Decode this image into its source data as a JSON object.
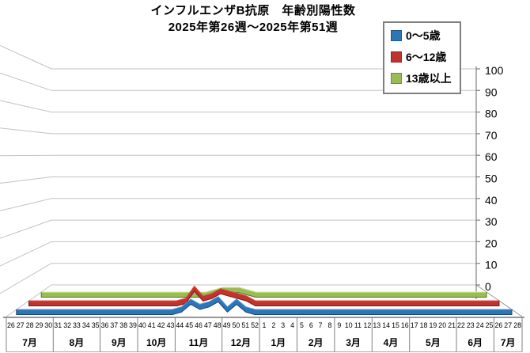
{
  "title": {
    "line1": "インフルエンザB抗原　年齢別陽性数",
    "line2": "2025年第26週～2025年第51週"
  },
  "legend": {
    "items": [
      {
        "label": "0～5歳",
        "color": "#2E75B6"
      },
      {
        "label": "6～12歳",
        "color": "#BE352F"
      },
      {
        "label": "13歳以上",
        "color": "#9BBB59"
      }
    ]
  },
  "chart_data": {
    "type": "line",
    "style": "3d-ribbon",
    "title": "インフルエンザB抗原　年齢別陽性数",
    "subtitle": "2025年第26週～2025年第51週",
    "ylabel": "",
    "ylim": [
      0,
      100
    ],
    "yticks": [
      0,
      10,
      20,
      30,
      40,
      50,
      60,
      70,
      80,
      90,
      100
    ],
    "grid": true,
    "legend_position": "top-right",
    "x": [
      "26",
      "27",
      "28",
      "29",
      "30",
      "31",
      "32",
      "33",
      "34",
      "35",
      "36",
      "37",
      "38",
      "39",
      "40",
      "41",
      "42",
      "43",
      "44",
      "45",
      "46",
      "47",
      "48",
      "49",
      "50",
      "51",
      "52",
      "1",
      "2",
      "3",
      "4",
      "5",
      "6",
      "7",
      "8",
      "9",
      "10",
      "11",
      "12",
      "13",
      "14",
      "15",
      "16",
      "17",
      "18",
      "19",
      "20",
      "21",
      "22",
      "23",
      "24",
      "25",
      "26",
      "27",
      "28"
    ],
    "month_groups": [
      {
        "label": "7月",
        "weeks": 5
      },
      {
        "label": "8月",
        "weeks": 5
      },
      {
        "label": "9月",
        "weeks": 4
      },
      {
        "label": "10月",
        "weeks": 4
      },
      {
        "label": "11月",
        "weeks": 5
      },
      {
        "label": "12月",
        "weeks": 4
      },
      {
        "label": "1月",
        "weeks": 4
      },
      {
        "label": "2月",
        "weeks": 4
      },
      {
        "label": "3月",
        "weeks": 4
      },
      {
        "label": "4月",
        "weeks": 4
      },
      {
        "label": "5月",
        "weeks": 5
      },
      {
        "label": "6月",
        "weeks": 4
      },
      {
        "label": "7月",
        "weeks": 3
      }
    ],
    "series": [
      {
        "name": "0～5歳",
        "color": "#2E75B6",
        "depth": "front",
        "values": [
          0,
          0,
          0,
          0,
          0,
          0,
          0,
          0,
          0,
          0,
          0,
          0,
          0,
          0,
          0,
          0,
          0,
          0,
          1,
          4,
          2,
          3,
          5,
          1,
          4,
          1,
          0,
          0,
          0,
          0,
          0,
          0,
          0,
          0,
          0,
          0,
          0,
          0,
          0,
          0,
          0,
          0,
          0,
          0,
          0,
          0,
          0,
          0,
          0,
          0,
          0,
          0,
          0,
          0,
          0
        ]
      },
      {
        "name": "6～12歳",
        "color": "#BE352F",
        "depth": "middle",
        "values": [
          0,
          0,
          0,
          0,
          0,
          0,
          0,
          0,
          0,
          0,
          0,
          0,
          0,
          0,
          0,
          0,
          0,
          0,
          1,
          6,
          2,
          3,
          5,
          4,
          3,
          2,
          0,
          0,
          0,
          0,
          0,
          0,
          0,
          0,
          0,
          0,
          0,
          0,
          0,
          0,
          0,
          0,
          0,
          0,
          0,
          0,
          0,
          0,
          0,
          0,
          0,
          0,
          0,
          0,
          0
        ]
      },
      {
        "name": "13歳以上",
        "color": "#9BBB59",
        "depth": "back",
        "values": [
          0,
          0,
          0,
          0,
          0,
          0,
          0,
          0,
          0,
          0,
          0,
          0,
          0,
          0,
          0,
          0,
          0,
          0,
          0,
          0,
          0,
          1,
          2,
          2,
          2,
          1,
          0,
          0,
          0,
          0,
          0,
          0,
          0,
          0,
          0,
          0,
          0,
          0,
          0,
          0,
          0,
          0,
          0,
          0,
          0,
          0,
          0,
          0,
          0,
          0,
          0,
          0,
          0,
          0,
          0
        ]
      }
    ]
  }
}
